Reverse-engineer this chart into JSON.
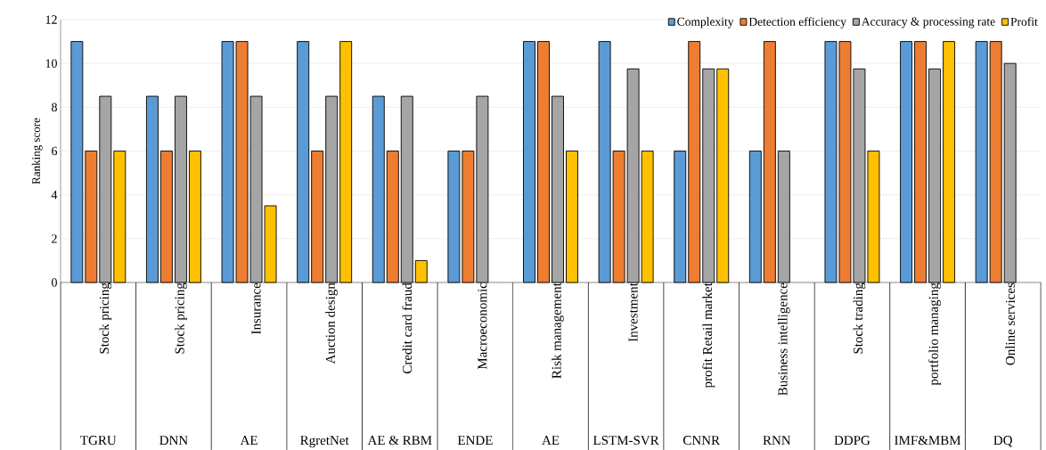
{
  "chart_data": {
    "type": "bar",
    "ylabel": "Ranking score",
    "categories": [
      "Stock pricing",
      "Stock pricing",
      "Insurance",
      "Auction design",
      "Credit card fraud",
      "Macroeconomic",
      "Risk management",
      "Investment",
      "profit Retail market",
      "Business intelligence",
      "Stock trading",
      "portfolio managing",
      "Online services"
    ],
    "annotations": [
      "TGRU",
      "DNN",
      "AE",
      "RgretNet",
      "AE & RBM",
      "ENDE",
      "AE",
      "LSTM-SVR",
      "CNNR",
      "RNN",
      "DDPG",
      "IMF&MBM",
      "DQ"
    ],
    "series": [
      {
        "name": "Complexity",
        "color": "#5b9bd5",
        "values": [
          11,
          8.5,
          11,
          11,
          8.5,
          6,
          11,
          11,
          6,
          6,
          11,
          11,
          11
        ]
      },
      {
        "name": "Detection efficiency",
        "color": "#ed7d31",
        "values": [
          6,
          6,
          11,
          6,
          6,
          6,
          11,
          6,
          11,
          11,
          11,
          11,
          11
        ]
      },
      {
        "name": "Accuracy & processing rate",
        "color": "#a5a5a5",
        "values": [
          8.5,
          8.5,
          8.5,
          8.5,
          8.5,
          8.5,
          8.5,
          9.75,
          9.75,
          6,
          9.75,
          9.75,
          10
        ]
      },
      {
        "name": "Profit",
        "color": "#ffc000",
        "values": [
          6,
          6,
          3.5,
          11,
          1,
          null,
          6,
          6,
          9.75,
          null,
          6,
          11,
          null
        ]
      }
    ],
    "ylim": [
      0,
      12
    ],
    "yticks": [
      0,
      2,
      4,
      6,
      8,
      10,
      12
    ],
    "grid": "y",
    "legend": "top right"
  }
}
